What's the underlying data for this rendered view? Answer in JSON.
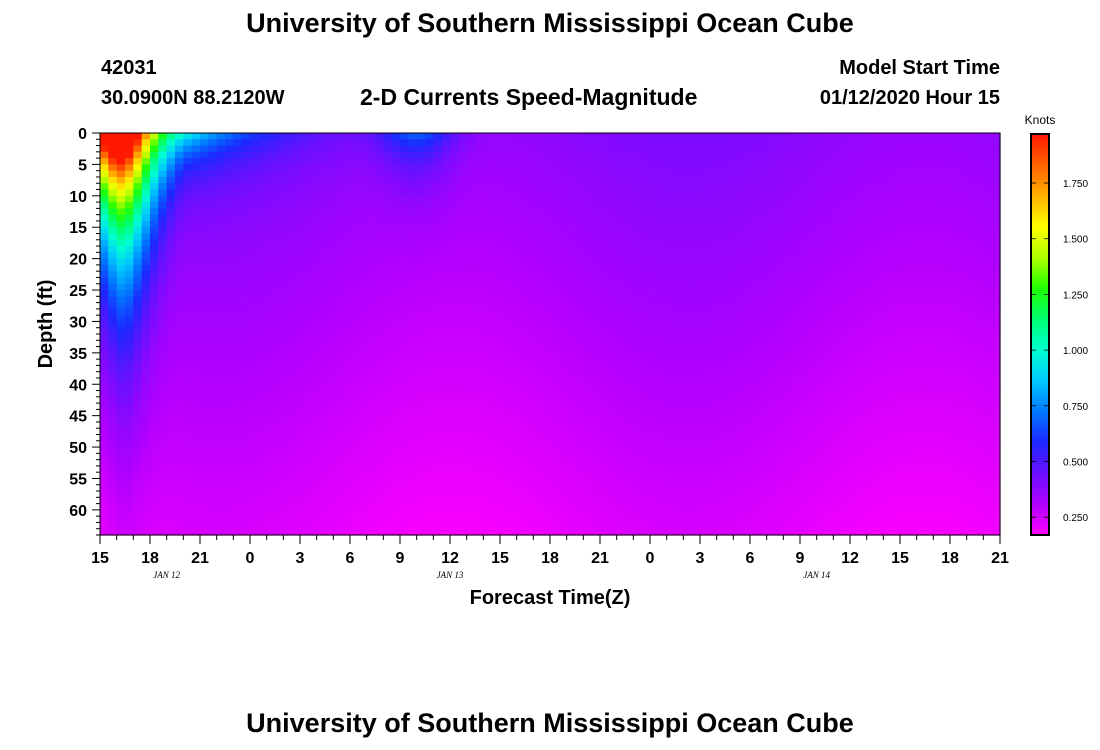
{
  "header": {
    "title": "University of Southern Mississippi Ocean Cube",
    "station_id": "42031",
    "station_location": "30.0900N 88.2120W",
    "chart_title": "2-D Currents Speed-Magnitude",
    "model_start_label": "Model Start Time",
    "model_start_value": "01/12/2020 Hour 15"
  },
  "footer": {
    "title": "University of Southern Mississippi Ocean Cube"
  },
  "chart_data": {
    "type": "heatmap",
    "title": "2-D Currents Speed-Magnitude",
    "xlabel": "Forecast Time(Z)",
    "ylabel": "Depth (ft)",
    "x_tick_labels": [
      "15",
      "18",
      "21",
      "0",
      "3",
      "6",
      "9",
      "12",
      "15",
      "18",
      "21",
      "0",
      "3",
      "6",
      "9",
      "12",
      "15",
      "18",
      "21"
    ],
    "x_hours_from_start": [
      0,
      3,
      6,
      9,
      12,
      15,
      18,
      21,
      24,
      27,
      30,
      33,
      36,
      39,
      42,
      45,
      48,
      51,
      54
    ],
    "date_labels": [
      {
        "label": "JAN 12",
        "hour": 4
      },
      {
        "label": "JAN 13",
        "hour": 21
      },
      {
        "label": "JAN 14",
        "hour": 43
      }
    ],
    "y_tick_labels": [
      "0",
      "5",
      "10",
      "15",
      "20",
      "25",
      "30",
      "35",
      "40",
      "45",
      "50",
      "55",
      "60"
    ],
    "y_ticks": [
      0,
      5,
      10,
      15,
      20,
      25,
      30,
      35,
      40,
      45,
      50,
      55,
      60
    ],
    "ylim": [
      0,
      64
    ],
    "y_inverted": true,
    "colorbar": {
      "label": "Knots",
      "range": [
        0.17,
        1.97
      ],
      "ticks": [
        0.25,
        0.5,
        0.75,
        1.0,
        1.25,
        1.5,
        1.75
      ],
      "tick_labels": [
        "0.250",
        "0.500",
        "0.750",
        "1.000",
        "1.250",
        "1.500",
        "1.750"
      ],
      "colors": [
        "#ff00ff",
        "#b000ff",
        "#6a10ff",
        "#1c28ff",
        "#0078ff",
        "#00c8ff",
        "#00ffd0",
        "#00ff70",
        "#20ff00",
        "#b0ff00",
        "#ffff00",
        "#ffb000",
        "#ff6000",
        "#ff1800"
      ]
    },
    "field_description_values": {
      "surface_peak_speed_knots": 1.95,
      "surface_peak_hour": 1,
      "secondary_peak_hour": 19,
      "secondary_peak_speed_knots": 0.65
    }
  }
}
